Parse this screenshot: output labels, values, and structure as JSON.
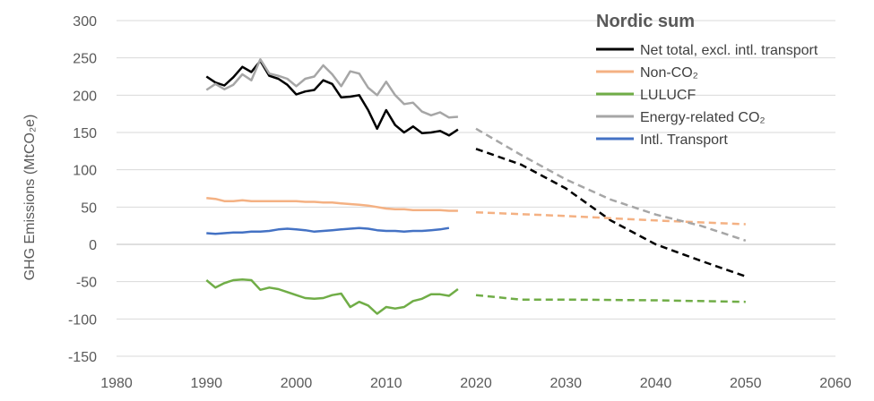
{
  "chart_data": {
    "type": "line",
    "title": "Nordic sum",
    "ylabel": "GHG Emissions (MtCO₂e)",
    "xlabel": "",
    "xlim": [
      1980,
      2060
    ],
    "ylim": [
      -150,
      300
    ],
    "xticks": [
      1980,
      1990,
      2000,
      2010,
      2020,
      2030,
      2040,
      2050,
      2060
    ],
    "yticks": [
      300,
      250,
      200,
      150,
      100,
      50,
      0,
      -50,
      -100,
      -150
    ],
    "grid": "horizontal",
    "legend_position": "top-right",
    "series": [
      {
        "name": "Net total, excl. intl. transport",
        "color": "#000000",
        "historical": {
          "x": [
            1990,
            1991,
            1992,
            1993,
            1994,
            1995,
            1996,
            1997,
            1998,
            1999,
            2000,
            2001,
            2002,
            2003,
            2004,
            2005,
            2006,
            2007,
            2008,
            2009,
            2010,
            2011,
            2012,
            2013,
            2014,
            2015,
            2016,
            2017,
            2018
          ],
          "y": [
            225,
            217,
            213,
            224,
            238,
            231,
            246,
            226,
            222,
            214,
            201,
            205,
            207,
            220,
            215,
            197,
            198,
            200,
            180,
            155,
            180,
            160,
            150,
            158,
            149,
            150,
            152,
            146,
            154
          ]
        },
        "projection": {
          "x": [
            2020,
            2025,
            2030,
            2035,
            2040,
            2045,
            2050
          ],
          "y": [
            128,
            107,
            75,
            32,
            0,
            -22,
            -43
          ]
        }
      },
      {
        "name": "Non-CO₂",
        "color": "#F4B183",
        "historical": {
          "x": [
            1990,
            1991,
            1992,
            1993,
            1994,
            1995,
            1996,
            1997,
            1998,
            1999,
            2000,
            2001,
            2002,
            2003,
            2004,
            2005,
            2006,
            2007,
            2008,
            2009,
            2010,
            2011,
            2012,
            2013,
            2014,
            2015,
            2016,
            2017,
            2018
          ],
          "y": [
            62,
            61,
            58,
            58,
            59,
            58,
            58,
            58,
            58,
            58,
            58,
            57,
            57,
            56,
            56,
            55,
            54,
            53,
            52,
            50,
            48,
            47,
            47,
            46,
            46,
            46,
            46,
            45,
            45
          ]
        },
        "projection": {
          "x": [
            2020,
            2030,
            2040,
            2050
          ],
          "y": [
            43,
            38,
            32,
            27
          ]
        }
      },
      {
        "name": "LULUCF",
        "color": "#70AD47",
        "historical": {
          "x": [
            1990,
            1991,
            1992,
            1993,
            1994,
            1995,
            1996,
            1997,
            1998,
            1999,
            2000,
            2001,
            2002,
            2003,
            2004,
            2005,
            2006,
            2007,
            2008,
            2009,
            2010,
            2011,
            2012,
            2013,
            2014,
            2015,
            2016,
            2017,
            2018
          ],
          "y": [
            -48,
            -58,
            -52,
            -48,
            -47,
            -48,
            -61,
            -58,
            -60,
            -64,
            -68,
            -72,
            -73,
            -72,
            -68,
            -66,
            -84,
            -77,
            -82,
            -93,
            -84,
            -86,
            -84,
            -76,
            -73,
            -67,
            -67,
            -69,
            -60
          ]
        },
        "projection": {
          "x": [
            2020,
            2025,
            2030,
            2040,
            2050
          ],
          "y": [
            -68,
            -74,
            -74,
            -75,
            -77
          ]
        }
      },
      {
        "name": "Energy-related CO₂",
        "color": "#A6A6A6",
        "historical": {
          "x": [
            1990,
            1991,
            1992,
            1993,
            1994,
            1995,
            1996,
            1997,
            1998,
            1999,
            2000,
            2001,
            2002,
            2003,
            2004,
            2005,
            2006,
            2007,
            2008,
            2009,
            2010,
            2011,
            2012,
            2013,
            2014,
            2015,
            2016,
            2017,
            2018
          ],
          "y": [
            207,
            215,
            208,
            214,
            228,
            220,
            248,
            229,
            226,
            222,
            212,
            222,
            225,
            240,
            228,
            212,
            232,
            229,
            210,
            200,
            218,
            200,
            188,
            190,
            178,
            173,
            177,
            170,
            171
          ]
        },
        "projection": {
          "x": [
            2020,
            2025,
            2030,
            2035,
            2040,
            2045,
            2050
          ],
          "y": [
            155,
            120,
            87,
            60,
            40,
            25,
            5
          ]
        }
      },
      {
        "name": "Intl. Transport",
        "color": "#4472C4",
        "historical": {
          "x": [
            1990,
            1991,
            1992,
            1993,
            1994,
            1995,
            1996,
            1997,
            1998,
            1999,
            2000,
            2001,
            2002,
            2003,
            2004,
            2005,
            2006,
            2007,
            2008,
            2009,
            2010,
            2011,
            2012,
            2013,
            2014,
            2015,
            2016,
            2017
          ],
          "y": [
            15,
            14,
            15,
            16,
            16,
            17,
            17,
            18,
            20,
            21,
            20,
            19,
            17,
            18,
            19,
            20,
            21,
            22,
            21,
            19,
            18,
            18,
            17,
            18,
            18,
            19,
            20,
            22
          ]
        },
        "projection": null
      }
    ]
  }
}
